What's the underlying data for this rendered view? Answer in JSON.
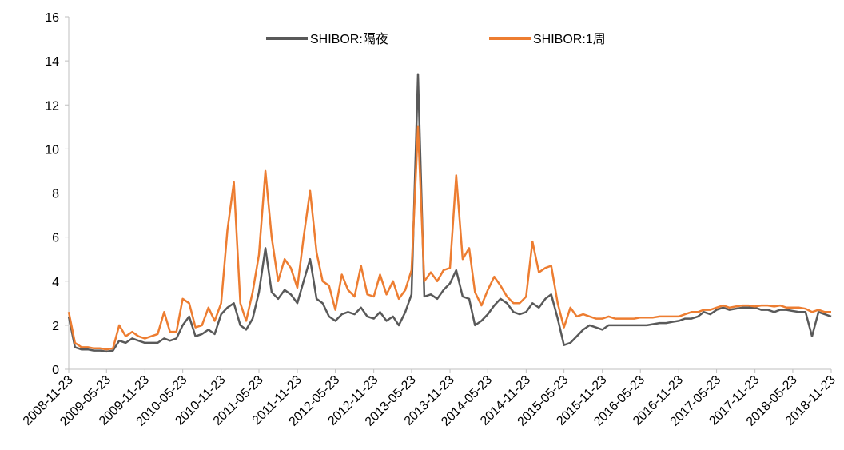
{
  "chart_data": {
    "type": "line",
    "x": [
      "2008-11-23",
      "2008-12-23",
      "2009-01-23",
      "2009-02-23",
      "2009-03-23",
      "2009-04-23",
      "2009-05-23",
      "2009-06-23",
      "2009-07-23",
      "2009-08-23",
      "2009-09-23",
      "2009-10-23",
      "2009-11-23",
      "2009-12-23",
      "2010-01-23",
      "2010-02-23",
      "2010-03-23",
      "2010-04-23",
      "2010-05-23",
      "2010-06-23",
      "2010-07-23",
      "2010-08-23",
      "2010-09-23",
      "2010-10-23",
      "2010-11-23",
      "2010-12-23",
      "2011-01-23",
      "2011-02-23",
      "2011-03-23",
      "2011-04-23",
      "2011-05-23",
      "2011-06-23",
      "2011-07-23",
      "2011-08-23",
      "2011-09-23",
      "2011-10-23",
      "2011-11-23",
      "2011-12-23",
      "2012-01-23",
      "2012-02-23",
      "2012-03-23",
      "2012-04-23",
      "2012-05-23",
      "2012-06-23",
      "2012-07-23",
      "2012-08-23",
      "2012-09-23",
      "2012-10-23",
      "2012-11-23",
      "2012-12-23",
      "2013-01-23",
      "2013-02-23",
      "2013-03-23",
      "2013-04-23",
      "2013-05-23",
      "2013-06-23",
      "2013-07-23",
      "2013-08-23",
      "2013-09-23",
      "2013-10-23",
      "2013-11-23",
      "2013-12-23",
      "2014-01-23",
      "2014-02-23",
      "2014-03-23",
      "2014-04-23",
      "2014-05-23",
      "2014-06-23",
      "2014-07-23",
      "2014-08-23",
      "2014-09-23",
      "2014-10-23",
      "2014-11-23",
      "2014-12-23",
      "2015-01-23",
      "2015-02-23",
      "2015-03-23",
      "2015-04-23",
      "2015-05-23",
      "2015-06-23",
      "2015-07-23",
      "2015-08-23",
      "2015-09-23",
      "2015-10-23",
      "2015-11-23",
      "2015-12-23",
      "2016-01-23",
      "2016-02-23",
      "2016-03-23",
      "2016-04-23",
      "2016-05-23",
      "2016-06-23",
      "2016-07-23",
      "2016-08-23",
      "2016-09-23",
      "2016-10-23",
      "2016-11-23",
      "2016-12-23",
      "2017-01-23",
      "2017-02-23",
      "2017-03-23",
      "2017-04-23",
      "2017-05-23",
      "2017-06-23",
      "2017-07-23",
      "2017-08-23",
      "2017-09-23",
      "2017-10-23",
      "2017-11-23",
      "2017-12-23",
      "2018-01-23",
      "2018-02-23",
      "2018-03-23",
      "2018-04-23",
      "2018-05-23",
      "2018-06-23",
      "2018-07-23",
      "2018-08-23",
      "2018-09-23",
      "2018-10-23",
      "2018-11-23"
    ],
    "series": [
      {
        "name": "SHIBOR:隔夜",
        "color": "#595959",
        "values": [
          2.4,
          1.0,
          0.9,
          0.9,
          0.85,
          0.85,
          0.8,
          0.85,
          1.3,
          1.2,
          1.4,
          1.3,
          1.2,
          1.2,
          1.2,
          1.4,
          1.3,
          1.4,
          2.0,
          2.4,
          1.5,
          1.6,
          1.8,
          1.6,
          2.5,
          2.8,
          3.0,
          2.0,
          1.8,
          2.3,
          3.5,
          5.5,
          3.5,
          3.2,
          3.6,
          3.4,
          3.0,
          4.0,
          5.0,
          3.2,
          3.0,
          2.4,
          2.2,
          2.5,
          2.6,
          2.5,
          2.8,
          2.4,
          2.3,
          2.6,
          2.2,
          2.4,
          2.0,
          2.6,
          3.4,
          13.4,
          3.3,
          3.4,
          3.2,
          3.6,
          3.9,
          4.5,
          3.3,
          3.2,
          2.0,
          2.2,
          2.5,
          2.9,
          3.2,
          3.0,
          2.6,
          2.5,
          2.6,
          3.0,
          2.8,
          3.2,
          3.4,
          2.3,
          1.1,
          1.2,
          1.5,
          1.8,
          2.0,
          1.9,
          1.8,
          2.0,
          2.0,
          2.0,
          2.0,
          2.0,
          2.0,
          2.0,
          2.05,
          2.1,
          2.1,
          2.15,
          2.2,
          2.3,
          2.3,
          2.4,
          2.6,
          2.5,
          2.7,
          2.8,
          2.7,
          2.75,
          2.8,
          2.8,
          2.8,
          2.7,
          2.7,
          2.6,
          2.7,
          2.7,
          2.65,
          2.6,
          2.6,
          1.5,
          2.6,
          2.5,
          2.4
        ]
      },
      {
        "name": "SHIBOR:1周",
        "color": "#ed7d31",
        "values": [
          2.6,
          1.2,
          1.0,
          1.0,
          0.95,
          0.95,
          0.9,
          0.95,
          2.0,
          1.5,
          1.7,
          1.5,
          1.4,
          1.5,
          1.6,
          2.6,
          1.7,
          1.7,
          3.2,
          3.0,
          1.9,
          2.0,
          2.8,
          2.2,
          3.0,
          6.3,
          8.5,
          3.0,
          2.2,
          3.5,
          5.2,
          9.0,
          6.0,
          4.0,
          5.0,
          4.6,
          3.7,
          6.0,
          8.1,
          5.3,
          4.0,
          3.8,
          2.7,
          4.3,
          3.6,
          3.3,
          4.7,
          3.4,
          3.3,
          4.3,
          3.4,
          4.0,
          3.2,
          3.6,
          4.5,
          11.0,
          4.0,
          4.4,
          4.0,
          4.5,
          4.6,
          8.8,
          5.0,
          5.5,
          3.5,
          2.9,
          3.6,
          4.2,
          3.8,
          3.3,
          3.0,
          3.0,
          3.3,
          5.8,
          4.4,
          4.6,
          4.7,
          3.0,
          1.9,
          2.8,
          2.4,
          2.5,
          2.4,
          2.3,
          2.3,
          2.4,
          2.3,
          2.3,
          2.3,
          2.3,
          2.35,
          2.35,
          2.35,
          2.4,
          2.4,
          2.4,
          2.4,
          2.5,
          2.6,
          2.6,
          2.7,
          2.7,
          2.8,
          2.9,
          2.8,
          2.85,
          2.9,
          2.9,
          2.85,
          2.9,
          2.9,
          2.85,
          2.9,
          2.8,
          2.8,
          2.8,
          2.75,
          2.6,
          2.7,
          2.6,
          2.6
        ]
      }
    ],
    "xlim": [
      "2008-11-23",
      "2018-11-23"
    ],
    "xticks": [
      "2008-11-23",
      "2009-05-23",
      "2009-11-23",
      "2010-05-23",
      "2010-11-23",
      "2011-05-23",
      "2011-11-23",
      "2012-05-23",
      "2012-11-23",
      "2013-05-23",
      "2013-11-23",
      "2014-05-23",
      "2014-11-23",
      "2015-05-23",
      "2015-11-23",
      "2016-05-23",
      "2016-11-23",
      "2017-05-23",
      "2017-11-23",
      "2018-05-23",
      "2018-11-23"
    ],
    "ylim": [
      0,
      16
    ],
    "yticks": [
      0,
      2,
      4,
      6,
      8,
      10,
      12,
      14,
      16
    ],
    "legend": "top"
  }
}
